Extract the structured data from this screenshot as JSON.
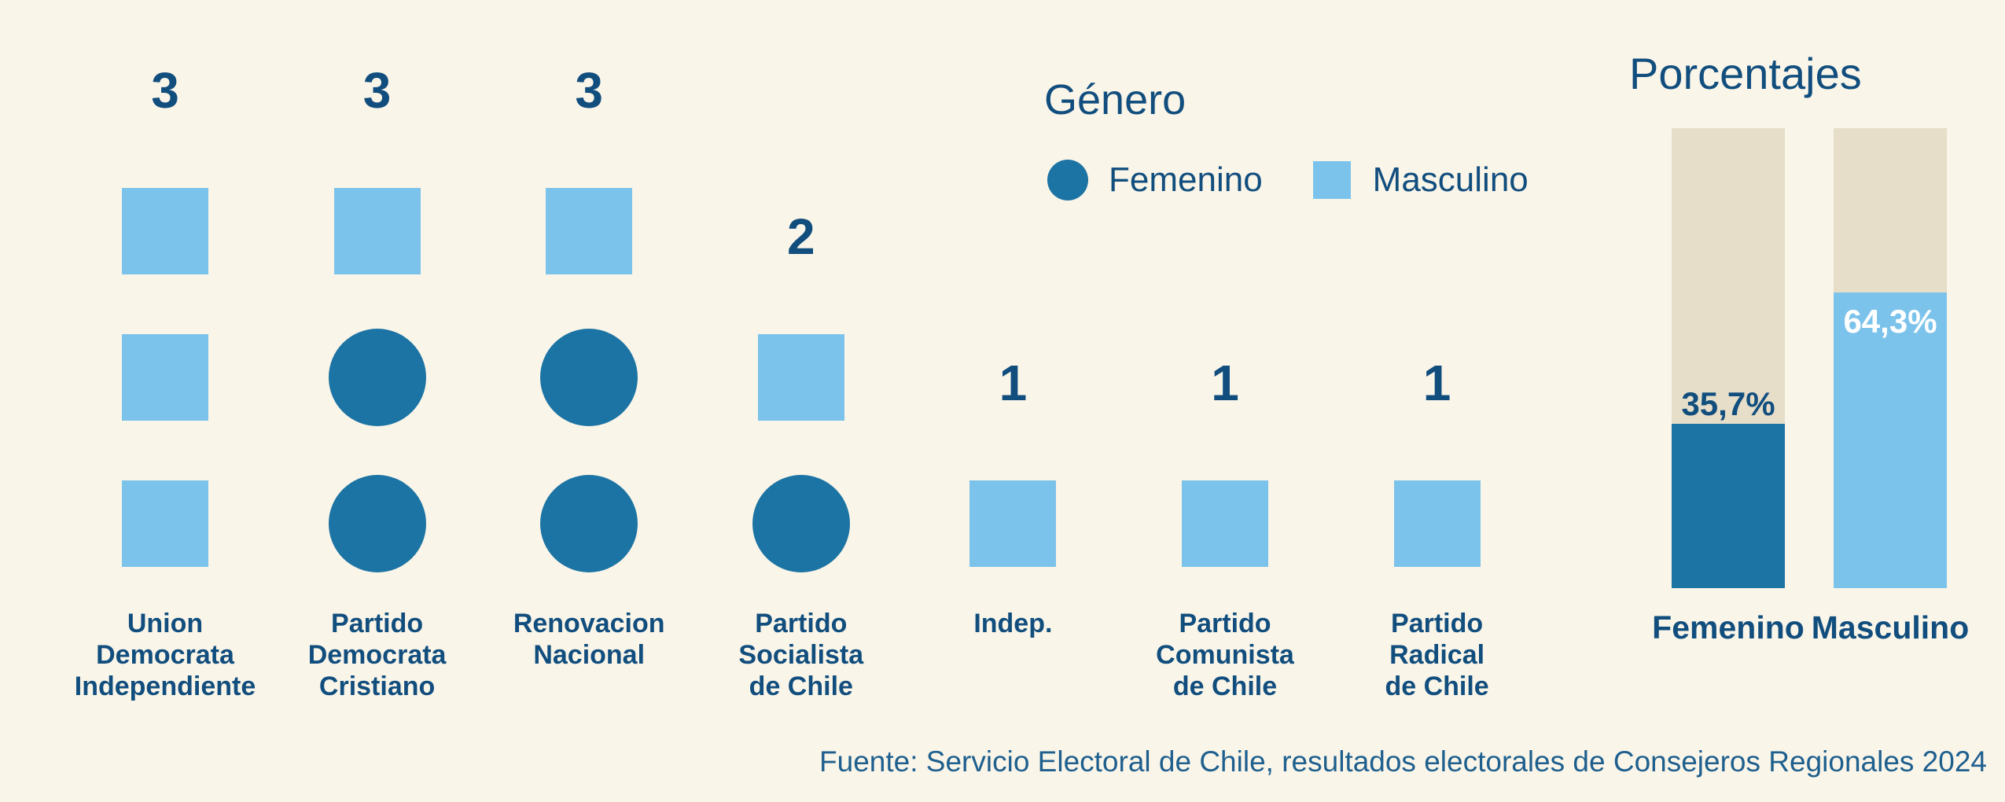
{
  "colors": {
    "background": "#faf5e9",
    "femenino": "#1c74a4",
    "masculino": "#7cc3eb",
    "navy_text": "#114e7e",
    "bar_track": "#e6dec9",
    "footer_text": "#1e5f8e",
    "value_on_fill": "#ffffff"
  },
  "legend": {
    "title": "Género",
    "items": [
      {
        "label": "Femenino",
        "swatch": "circle",
        "color": "#1c74a4"
      },
      {
        "label": "Masculino",
        "swatch": "square",
        "color": "#7cc3eb"
      }
    ]
  },
  "pictogram": {
    "columns": [
      {
        "label_lines": [
          "Union",
          "Democrata",
          "Independiente"
        ],
        "count": "3",
        "units": [
          "masculino",
          "masculino",
          "masculino"
        ]
      },
      {
        "label_lines": [
          "Partido",
          "Democrata",
          "Cristiano"
        ],
        "count": "3",
        "units": [
          "masculino",
          "femenino",
          "femenino"
        ]
      },
      {
        "label_lines": [
          "Renovacion",
          "Nacional"
        ],
        "count": "3",
        "units": [
          "masculino",
          "femenino",
          "femenino"
        ]
      },
      {
        "label_lines": [
          "Partido",
          "Socialista",
          "de Chile"
        ],
        "count": "2",
        "units": [
          "masculino",
          "femenino"
        ]
      },
      {
        "label_lines": [
          "Indep."
        ],
        "count": "1",
        "units": [
          "masculino"
        ]
      },
      {
        "label_lines": [
          "Partido",
          "Comunista",
          "de Chile"
        ],
        "count": "1",
        "units": [
          "masculino"
        ]
      },
      {
        "label_lines": [
          "Partido",
          "Radical",
          "de Chile"
        ],
        "count": "1",
        "units": [
          "masculino"
        ]
      }
    ]
  },
  "percent_chart": {
    "title": "Porcentajes",
    "bars": [
      {
        "label": "Femenino",
        "value_label": "35,7%",
        "percent": 35.7,
        "fill": "femenino",
        "value_color": "#114e7e",
        "value_placement": "above"
      },
      {
        "label": "Masculino",
        "value_label": "64,3%",
        "percent": 64.3,
        "fill": "masculino",
        "value_color": "#ffffff",
        "value_placement": "inside"
      }
    ]
  },
  "source": "Fuente: Servicio Electoral de Chile, resultados electorales de Consejeros Regionales 2024",
  "chart_data": [
    {
      "type": "pictogram",
      "title": "Género",
      "legend_position": "top-right of pictogram area",
      "legend": [
        "Femenino",
        "Masculino"
      ],
      "categories": [
        "Union Democrata Independiente",
        "Partido Democrata Cristiano",
        "Renovacion Nacional",
        "Partido Socialista de Chile",
        "Indep.",
        "Partido Comunista de Chile",
        "Partido Radical de Chile"
      ],
      "series": [
        {
          "name": "Femenino",
          "symbol": "circle",
          "color": "#1c74a4",
          "values": [
            0,
            2,
            2,
            1,
            0,
            0,
            0
          ]
        },
        {
          "name": "Masculino",
          "symbol": "square",
          "color": "#7cc3eb",
          "values": [
            3,
            1,
            1,
            1,
            1,
            1,
            1
          ]
        }
      ],
      "totals_labels": [
        3,
        3,
        3,
        2,
        1,
        1,
        1
      ],
      "annotation": "one symbol per elected councilor, stacked bottom-up with total count printed above each column"
    },
    {
      "type": "bar",
      "subtype": "percent-of-total, single stacked column per gender on beige 100% track",
      "title": "Porcentajes",
      "categories": [
        "Femenino",
        "Masculino"
      ],
      "values": [
        35.7,
        64.3
      ],
      "value_labels": [
        "35,7%",
        "64,3%"
      ],
      "colors": [
        "#1c74a4",
        "#7cc3eb"
      ],
      "ylim": [
        0,
        100
      ],
      "grid": false
    }
  ]
}
